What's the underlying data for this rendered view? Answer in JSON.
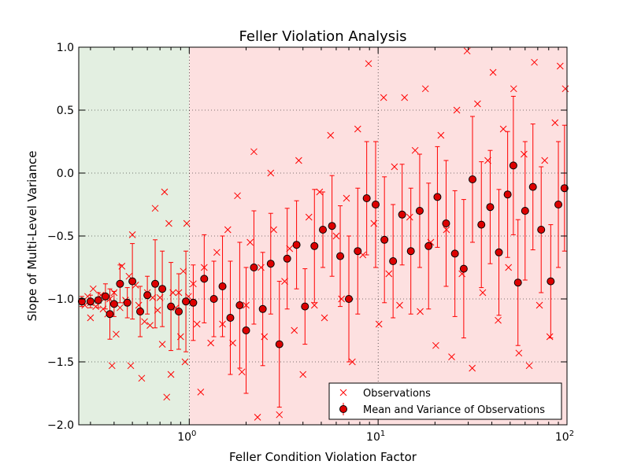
{
  "chart_data": {
    "type": "scatter",
    "title": "Feller Violation Analysis",
    "xlabel": "Feller Condition Violation Factor",
    "ylabel": "Slope of Multi-Level Variance",
    "x_scale": "log",
    "xlim": [
      0.26,
      100
    ],
    "ylim": [
      -2.0,
      1.0
    ],
    "grid": true,
    "grid_style": "dotted",
    "x_ticks": [
      {
        "value": 1,
        "base": "10",
        "exp": "0"
      },
      {
        "value": 10,
        "base": "10",
        "exp": "1"
      },
      {
        "value": 100,
        "base": "10",
        "exp": "2"
      }
    ],
    "y_ticks": [
      {
        "value": 1.0,
        "label": "1.0"
      },
      {
        "value": 0.5,
        "label": "0.5"
      },
      {
        "value": 0.0,
        "label": "0.0"
      },
      {
        "value": -0.5,
        "label": "−0.5"
      },
      {
        "value": -1.0,
        "label": "−1.0"
      },
      {
        "value": -1.5,
        "label": "−1.5"
      },
      {
        "value": -2.0,
        "label": "−2.0"
      }
    ],
    "regions": [
      {
        "x_from": 0.26,
        "x_to": 1,
        "color": "#e3efe1"
      },
      {
        "x_from": 1,
        "x_to": 100,
        "color": "#fde0e0"
      }
    ],
    "legend": {
      "placement": "lower-right",
      "entries": [
        {
          "marker": "x",
          "label": "Observations"
        },
        {
          "marker": "circle-errorbar",
          "label": "Mean and Variance of Observations"
        }
      ]
    },
    "colors": {
      "series": "#ff0000",
      "mean_face": "#dd0000"
    },
    "trend_note": "Observations cluster near -1.0 for factors below 1 and rise with wide spread toward about -0.2 near 100.",
    "series": [
      {
        "name": "Observations",
        "marker": "x",
        "points": [
          [
            0.27,
            -1.02
          ],
          [
            0.28,
            -1.05
          ],
          [
            0.29,
            -0.98
          ],
          [
            0.3,
            -1.15
          ],
          [
            0.3,
            -1.03
          ],
          [
            0.31,
            -0.92
          ],
          [
            0.32,
            -1.06
          ],
          [
            0.33,
            -1.01
          ],
          [
            0.34,
            -0.97
          ],
          [
            0.35,
            -1.08
          ],
          [
            0.36,
            -0.99
          ],
          [
            0.37,
            -1.12
          ],
          [
            0.38,
            -1.0
          ],
          [
            0.39,
            -1.53
          ],
          [
            0.4,
            -0.95
          ],
          [
            0.41,
            -1.28
          ],
          [
            0.43,
            -1.07
          ],
          [
            0.44,
            -0.74
          ],
          [
            0.46,
            -1.01
          ],
          [
            0.48,
            -0.82
          ],
          [
            0.49,
            -1.53
          ],
          [
            0.5,
            -0.49
          ],
          [
            0.52,
            -0.89
          ],
          [
            0.54,
            -1.05
          ],
          [
            0.56,
            -1.63
          ],
          [
            0.58,
            -1.18
          ],
          [
            0.6,
            -0.95
          ],
          [
            0.62,
            -1.21
          ],
          [
            0.64,
            -0.99
          ],
          [
            0.66,
            -0.28
          ],
          [
            0.68,
            -1.09
          ],
          [
            0.7,
            -0.99
          ],
          [
            0.72,
            -1.36
          ],
          [
            0.74,
            -0.15
          ],
          [
            0.76,
            -1.78
          ],
          [
            0.78,
            -0.4
          ],
          [
            0.8,
            -1.6
          ],
          [
            0.82,
            -0.95
          ],
          [
            0.85,
            -1.07
          ],
          [
            0.88,
            -0.95
          ],
          [
            0.9,
            -1.3
          ],
          [
            0.93,
            -0.78
          ],
          [
            0.95,
            -1.5
          ],
          [
            0.97,
            -0.4
          ],
          [
            0.99,
            -0.98
          ],
          [
            1.05,
            -0.88
          ],
          [
            1.1,
            -1.2
          ],
          [
            1.15,
            -1.74
          ],
          [
            1.2,
            -0.75
          ],
          [
            1.3,
            -1.35
          ],
          [
            1.4,
            -0.63
          ],
          [
            1.5,
            -1.2
          ],
          [
            1.6,
            -0.45
          ],
          [
            1.7,
            -1.35
          ],
          [
            1.8,
            -0.18
          ],
          [
            1.9,
            -1.58
          ],
          [
            2.0,
            -1.05
          ],
          [
            2.1,
            -0.55
          ],
          [
            2.2,
            0.17
          ],
          [
            2.3,
            -1.94
          ],
          [
            2.4,
            -0.75
          ],
          [
            2.5,
            -1.3
          ],
          [
            2.7,
            0.0
          ],
          [
            2.8,
            -0.45
          ],
          [
            3.0,
            -1.92
          ],
          [
            3.2,
            -0.86
          ],
          [
            3.4,
            -0.6
          ],
          [
            3.6,
            -1.25
          ],
          [
            3.8,
            0.1
          ],
          [
            4.0,
            -1.6
          ],
          [
            4.3,
            -0.35
          ],
          [
            4.6,
            -1.05
          ],
          [
            4.9,
            -0.15
          ],
          [
            5.2,
            -1.15
          ],
          [
            5.6,
            0.3
          ],
          [
            6.0,
            -0.5
          ],
          [
            6.4,
            -1.0
          ],
          [
            6.8,
            -0.2
          ],
          [
            7.3,
            -1.5
          ],
          [
            7.8,
            0.35
          ],
          [
            8.3,
            -0.65
          ],
          [
            8.9,
            0.87
          ],
          [
            9.5,
            -0.4
          ],
          [
            10.1,
            -1.2
          ],
          [
            10.7,
            0.6
          ],
          [
            11.4,
            -0.8
          ],
          [
            12.2,
            0.05
          ],
          [
            13.0,
            -1.05
          ],
          [
            13.8,
            0.6
          ],
          [
            14.7,
            -0.35
          ],
          [
            15.7,
            0.18
          ],
          [
            16.7,
            -1.1
          ],
          [
            17.8,
            0.67
          ],
          [
            19.0,
            -0.55
          ],
          [
            20.2,
            -1.37
          ],
          [
            21.5,
            0.3
          ],
          [
            23.0,
            -0.45
          ],
          [
            24.5,
            -1.46
          ],
          [
            26.1,
            0.5
          ],
          [
            27.8,
            -0.8
          ],
          [
            29.6,
            0.97
          ],
          [
            31.5,
            -1.55
          ],
          [
            33.6,
            0.55
          ],
          [
            35.8,
            -0.95
          ],
          [
            38.1,
            0.1
          ],
          [
            40.6,
            0.8
          ],
          [
            43.2,
            -1.17
          ],
          [
            46.0,
            0.35
          ],
          [
            49.0,
            -0.75
          ],
          [
            52.2,
            0.67
          ],
          [
            55.6,
            -1.43
          ],
          [
            59.2,
            0.15
          ],
          [
            63.1,
            -1.53
          ],
          [
            67.2,
            0.88
          ],
          [
            71.5,
            -1.05
          ],
          [
            76.2,
            0.1
          ],
          [
            81.1,
            -1.3
          ],
          [
            86.4,
            0.4
          ],
          [
            92.0,
            0.85
          ],
          [
            98.0,
            0.67
          ]
        ]
      },
      {
        "name": "Mean and Variance of Observations",
        "marker": "circle-errorbar",
        "points": [
          {
            "x": 0.27,
            "y": -1.02,
            "err": 0.04
          },
          {
            "x": 0.3,
            "y": -1.02,
            "err": 0.05
          },
          {
            "x": 0.33,
            "y": -1.01,
            "err": 0.06
          },
          {
            "x": 0.36,
            "y": -0.98,
            "err": 0.1
          },
          {
            "x": 0.38,
            "y": -1.12,
            "err": 0.2
          },
          {
            "x": 0.4,
            "y": -1.04,
            "err": 0.1
          },
          {
            "x": 0.43,
            "y": -0.88,
            "err": 0.15
          },
          {
            "x": 0.47,
            "y": -1.03,
            "err": 0.12
          },
          {
            "x": 0.5,
            "y": -0.86,
            "err": 0.3
          },
          {
            "x": 0.55,
            "y": -1.1,
            "err": 0.2
          },
          {
            "x": 0.6,
            "y": -0.97,
            "err": 0.15
          },
          {
            "x": 0.66,
            "y": -0.88,
            "err": 0.35
          },
          {
            "x": 0.72,
            "y": -0.92,
            "err": 0.3
          },
          {
            "x": 0.8,
            "y": -1.06,
            "err": 0.35
          },
          {
            "x": 0.88,
            "y": -1.1,
            "err": 0.3
          },
          {
            "x": 0.96,
            "y": -1.02,
            "err": 0.4
          },
          {
            "x": 1.05,
            "y": -1.03,
            "err": 0.3
          },
          {
            "x": 1.2,
            "y": -0.84,
            "err": 0.35
          },
          {
            "x": 1.35,
            "y": -1.0,
            "err": 0.3
          },
          {
            "x": 1.5,
            "y": -0.9,
            "err": 0.4
          },
          {
            "x": 1.65,
            "y": -1.15,
            "err": 0.45
          },
          {
            "x": 1.85,
            "y": -1.05,
            "err": 0.5
          },
          {
            "x": 2.0,
            "y": -1.25,
            "err": 0.5
          },
          {
            "x": 2.2,
            "y": -0.75,
            "err": 0.45
          },
          {
            "x": 2.45,
            "y": -1.08,
            "err": 0.45
          },
          {
            "x": 2.7,
            "y": -0.72,
            "err": 0.4
          },
          {
            "x": 3.0,
            "y": -1.36,
            "err": 0.5
          },
          {
            "x": 3.3,
            "y": -0.68,
            "err": 0.4
          },
          {
            "x": 3.7,
            "y": -0.57,
            "err": 0.35
          },
          {
            "x": 4.1,
            "y": -1.06,
            "err": 0.3
          },
          {
            "x": 4.6,
            "y": -0.58,
            "err": 0.45
          },
          {
            "x": 5.1,
            "y": -0.45,
            "err": 0.3
          },
          {
            "x": 5.7,
            "y": -0.42,
            "err": 0.4
          },
          {
            "x": 6.3,
            "y": -0.66,
            "err": 0.4
          },
          {
            "x": 7.0,
            "y": -1.0,
            "err": 0.5
          },
          {
            "x": 7.8,
            "y": -0.62,
            "err": 0.5
          },
          {
            "x": 8.7,
            "y": -0.2,
            "err": 0.45
          },
          {
            "x": 9.7,
            "y": -0.25,
            "err": 0.5
          },
          {
            "x": 10.8,
            "y": -0.53,
            "err": 0.5
          },
          {
            "x": 12.0,
            "y": -0.7,
            "err": 0.45
          },
          {
            "x": 13.4,
            "y": -0.33,
            "err": 0.4
          },
          {
            "x": 14.9,
            "y": -0.62,
            "err": 0.5
          },
          {
            "x": 16.6,
            "y": -0.3,
            "err": 0.45
          },
          {
            "x": 18.5,
            "y": -0.58,
            "err": 0.5
          },
          {
            "x": 20.6,
            "y": -0.19,
            "err": 0.4
          },
          {
            "x": 22.9,
            "y": -0.4,
            "err": 0.5
          },
          {
            "x": 25.5,
            "y": -0.64,
            "err": 0.5
          },
          {
            "x": 28.4,
            "y": -0.76,
            "err": 0.55
          },
          {
            "x": 31.6,
            "y": -0.05,
            "err": 0.5
          },
          {
            "x": 35.2,
            "y": -0.41,
            "err": 0.5
          },
          {
            "x": 39.2,
            "y": -0.27,
            "err": 0.45
          },
          {
            "x": 43.6,
            "y": -0.63,
            "err": 0.5
          },
          {
            "x": 48.5,
            "y": -0.17,
            "err": 0.5
          },
          {
            "x": 52.0,
            "y": 0.06,
            "err": 0.55
          },
          {
            "x": 55.0,
            "y": -0.87,
            "err": 0.5
          },
          {
            "x": 60.0,
            "y": -0.3,
            "err": 0.55
          },
          {
            "x": 66.0,
            "y": -0.11,
            "err": 0.5
          },
          {
            "x": 73.0,
            "y": -0.45,
            "err": 0.5
          },
          {
            "x": 82.0,
            "y": -0.86,
            "err": 0.45
          },
          {
            "x": 90.0,
            "y": -0.25,
            "err": 0.5
          },
          {
            "x": 97.0,
            "y": -0.12,
            "err": 0.5
          }
        ]
      }
    ]
  }
}
